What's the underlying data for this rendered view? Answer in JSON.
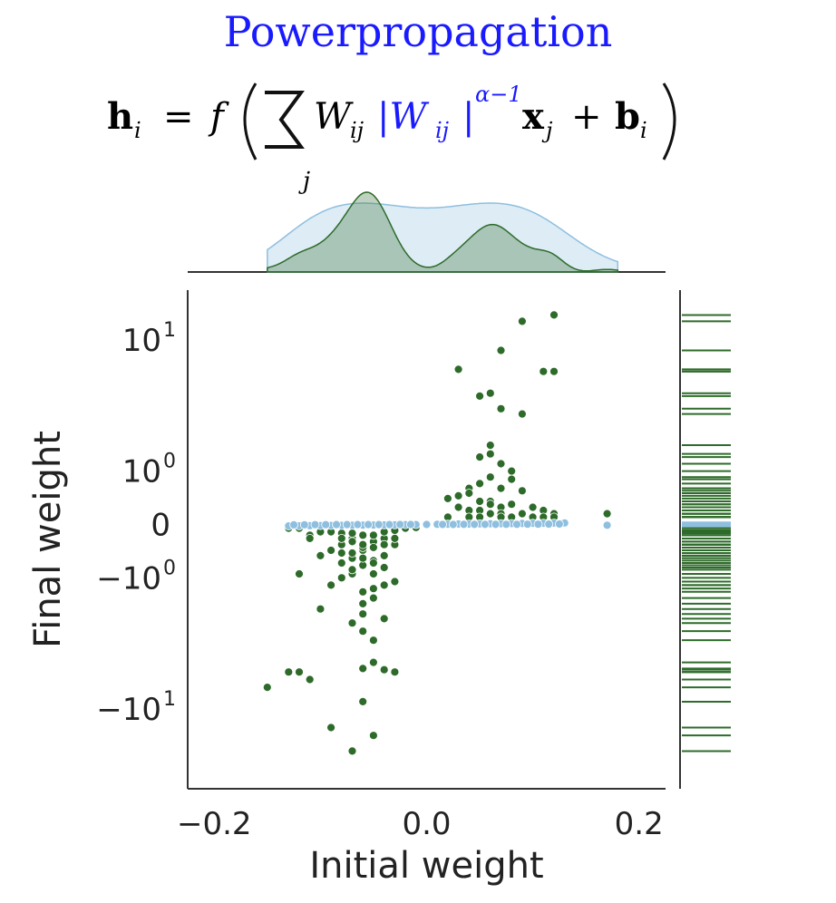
{
  "title": "Powerpropagation",
  "formula": {
    "lhs_h": "h",
    "lhs_sub": "i",
    "equals": "=",
    "f": "f",
    "sum_sub": "j",
    "W": "W",
    "W_sub": "ij",
    "absW": "|W",
    "absW_sub": "ij",
    "abs_close": "|",
    "exponent": "α−1",
    "x": "x",
    "x_sub": "j",
    "plus": "+",
    "b": "b",
    "b_sub": "i",
    "title_color": "#1a1aff",
    "highlight_color": "#1a1aff"
  },
  "chart_data": {
    "type": "scatter",
    "xlabel": "Initial weight",
    "ylabel": "Final weight",
    "xlim": [
      -0.225,
      0.225
    ],
    "yscale": "symlog",
    "linthresh": 1,
    "xticks": [
      {
        "value": -0.2,
        "label": "−0.2"
      },
      {
        "value": 0.0,
        "label": "0.0"
      },
      {
        "value": 0.2,
        "label": "0.2"
      }
    ],
    "yticks": [
      {
        "value": 10,
        "base": "10",
        "exp": "1"
      },
      {
        "value": 1,
        "base": "10",
        "exp": "0"
      },
      {
        "value": 0,
        "base": "0",
        "exp": ""
      },
      {
        "value": -1,
        "base": "−10",
        "exp": "0"
      },
      {
        "value": -10,
        "base": "−10",
        "exp": "1"
      }
    ],
    "grid": false,
    "marginals": {
      "top": "kde",
      "right": "rug"
    },
    "series": [
      {
        "color": "#2e6b2a",
        "x": [
          -0.15,
          -0.13,
          -0.12,
          -0.11,
          -0.09,
          -0.1,
          -0.07,
          -0.06,
          -0.06,
          -0.05,
          -0.05,
          -0.06,
          -0.07,
          -0.06,
          -0.04,
          -0.05,
          -0.03,
          -0.06,
          -0.05,
          -0.12,
          -0.09,
          -0.08,
          -0.07,
          -0.05,
          -0.04,
          -0.06,
          -0.07,
          -0.05,
          -0.08,
          -0.04,
          -0.06,
          -0.08,
          -0.06,
          -0.05,
          -0.03,
          -0.04,
          -0.07,
          -0.05,
          -0.11,
          -0.09,
          0.12,
          0.09,
          0.07,
          0.03,
          0.11,
          0.12,
          0.06,
          0.05,
          0.07,
          0.09,
          0.06,
          0.06,
          0.05,
          0.07,
          0.08,
          0.08,
          0.06,
          0.05,
          0.04,
          0.07,
          0.09,
          0.04,
          0.03,
          0.02,
          0.06,
          0.05,
          0.06,
          0.08,
          0.1,
          0.11,
          0.07,
          0.04,
          0.03,
          0.05,
          0.06,
          0.07,
          0.09,
          0.12,
          0.17,
          0.02,
          0.04,
          0.05,
          0.07,
          0.08,
          0.1,
          0.11,
          0.12,
          -0.13,
          -0.12,
          -0.1,
          -0.09,
          -0.08,
          -0.07,
          -0.06,
          -0.05,
          -0.04,
          -0.03,
          -0.02,
          -0.01,
          -0.11,
          -0.08,
          -0.07,
          -0.06,
          -0.05,
          -0.04,
          -0.03,
          -0.09,
          -0.07,
          -0.06,
          -0.05,
          -0.04,
          -0.1,
          -0.08,
          -0.07,
          -0.05,
          -0.03,
          -0.06,
          -0.04
        ],
        "y": [
          -7.3,
          -5.8,
          -5.8,
          -6.5,
          -13.0,
          -2.0,
          -18.0,
          -9.0,
          -5.5,
          -5.0,
          -3.5,
          -3.0,
          -2.6,
          -2.2,
          -5.6,
          -14.5,
          -5.8,
          -1.8,
          -1.6,
          -0.9,
          -1.2,
          -1.0,
          -0.9,
          -1.3,
          -1.2,
          -0.7,
          -0.55,
          -0.6,
          -0.45,
          -0.5,
          -0.4,
          -0.3,
          -0.35,
          -0.25,
          -0.3,
          -0.2,
          -0.2,
          -0.15,
          -0.15,
          -0.1,
          14.2,
          13.0,
          8.6,
          6.5,
          6.3,
          6.3,
          4.5,
          4.3,
          3.5,
          3.2,
          1.8,
          1.5,
          1.4,
          1.2,
          1.0,
          0.8,
          0.85,
          0.7,
          0.6,
          0.6,
          0.55,
          0.5,
          0.45,
          0.4,
          0.35,
          0.35,
          0.3,
          0.3,
          0.25,
          0.2,
          0.25,
          0.2,
          0.25,
          0.2,
          0.15,
          0.15,
          0.15,
          0.15,
          0.15,
          0.1,
          0.1,
          0.1,
          0.1,
          0.1,
          0.1,
          0.1,
          0.1,
          -0.05,
          -0.05,
          -0.1,
          -0.1,
          -0.12,
          -0.12,
          -0.15,
          -0.15,
          -0.1,
          -0.08,
          -0.05,
          -0.04,
          -0.2,
          -0.2,
          -0.25,
          -0.3,
          -0.35,
          -0.3,
          -0.2,
          -0.4,
          -0.45,
          -0.55,
          -0.65,
          -0.75,
          -0.5,
          -0.65,
          -0.8,
          -0.9,
          -1.1,
          -1.4,
          -2.4
        ]
      },
      {
        "color": "#8fbfdf",
        "x": [
          -0.13,
          -0.12,
          -0.11,
          -0.1,
          -0.09,
          -0.08,
          -0.07,
          -0.06,
          -0.05,
          -0.04,
          -0.03,
          -0.02,
          -0.01,
          0.0,
          0.01,
          0.02,
          0.03,
          0.04,
          0.05,
          0.06,
          0.07,
          0.08,
          0.09,
          0.1,
          0.11,
          0.12,
          0.13,
          0.17,
          -0.125,
          -0.115,
          -0.105,
          -0.095,
          -0.085,
          -0.075,
          -0.065,
          -0.055,
          -0.045,
          -0.035,
          -0.025,
          -0.015,
          0.015,
          0.025,
          0.035,
          0.045,
          0.055,
          0.065,
          0.075,
          0.085,
          0.095,
          0.105,
          0.115,
          0.125
        ],
        "y": [
          -0.02,
          -0.018,
          -0.016,
          -0.015,
          -0.013,
          -0.012,
          -0.01,
          -0.009,
          -0.008,
          -0.006,
          -0.005,
          -0.003,
          -0.002,
          0.0,
          0.002,
          0.003,
          0.005,
          0.006,
          0.008,
          0.009,
          0.01,
          0.012,
          0.013,
          0.015,
          0.016,
          0.018,
          0.02,
          -0.01,
          -0.005,
          -0.004,
          -0.003,
          -0.003,
          -0.002,
          -0.002,
          -0.001,
          -0.001,
          -0.001,
          -0.001,
          0.0,
          0.0,
          0.0,
          0.0,
          0.001,
          0.001,
          0.001,
          0.001,
          0.002,
          0.002,
          0.003,
          0.003,
          0.004,
          0.005
        ]
      }
    ]
  }
}
